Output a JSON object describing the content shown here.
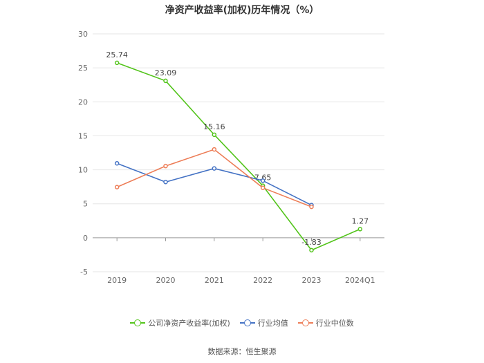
{
  "title": "净资产收益率(加权)历年情况（%）",
  "source": "数据来源：恒生聚源",
  "legend": [
    {
      "name": "公司净资产收益率(加权)",
      "color": "#52c41a"
    },
    {
      "name": "行业均值",
      "color": "#4472c4"
    },
    {
      "name": "行业中位数",
      "color": "#ed7d57"
    }
  ],
  "chart_data": {
    "type": "line",
    "categories": [
      "2019",
      "2020",
      "2021",
      "2022",
      "2023",
      "2024Q1"
    ],
    "ylim": [
      -5,
      30
    ],
    "yticks": [
      -5,
      0,
      5,
      10,
      15,
      20,
      25,
      30
    ],
    "grid": true,
    "legend_position": "bottom",
    "series": [
      {
        "name": "公司净资产收益率(加权)",
        "color": "#52c41a",
        "values": [
          25.74,
          23.09,
          15.16,
          7.65,
          -1.83,
          1.27
        ],
        "labels": [
          "25.74",
          "23.09",
          "15.16",
          "7.65",
          "-1.83",
          "1.27"
        ]
      },
      {
        "name": "行业均值",
        "color": "#4472c4",
        "values": [
          10.95,
          8.2,
          10.2,
          8.4,
          4.8,
          null
        ]
      },
      {
        "name": "行业中位数",
        "color": "#ed7d57",
        "values": [
          7.45,
          10.55,
          13.0,
          7.35,
          4.55,
          null
        ]
      }
    ]
  }
}
